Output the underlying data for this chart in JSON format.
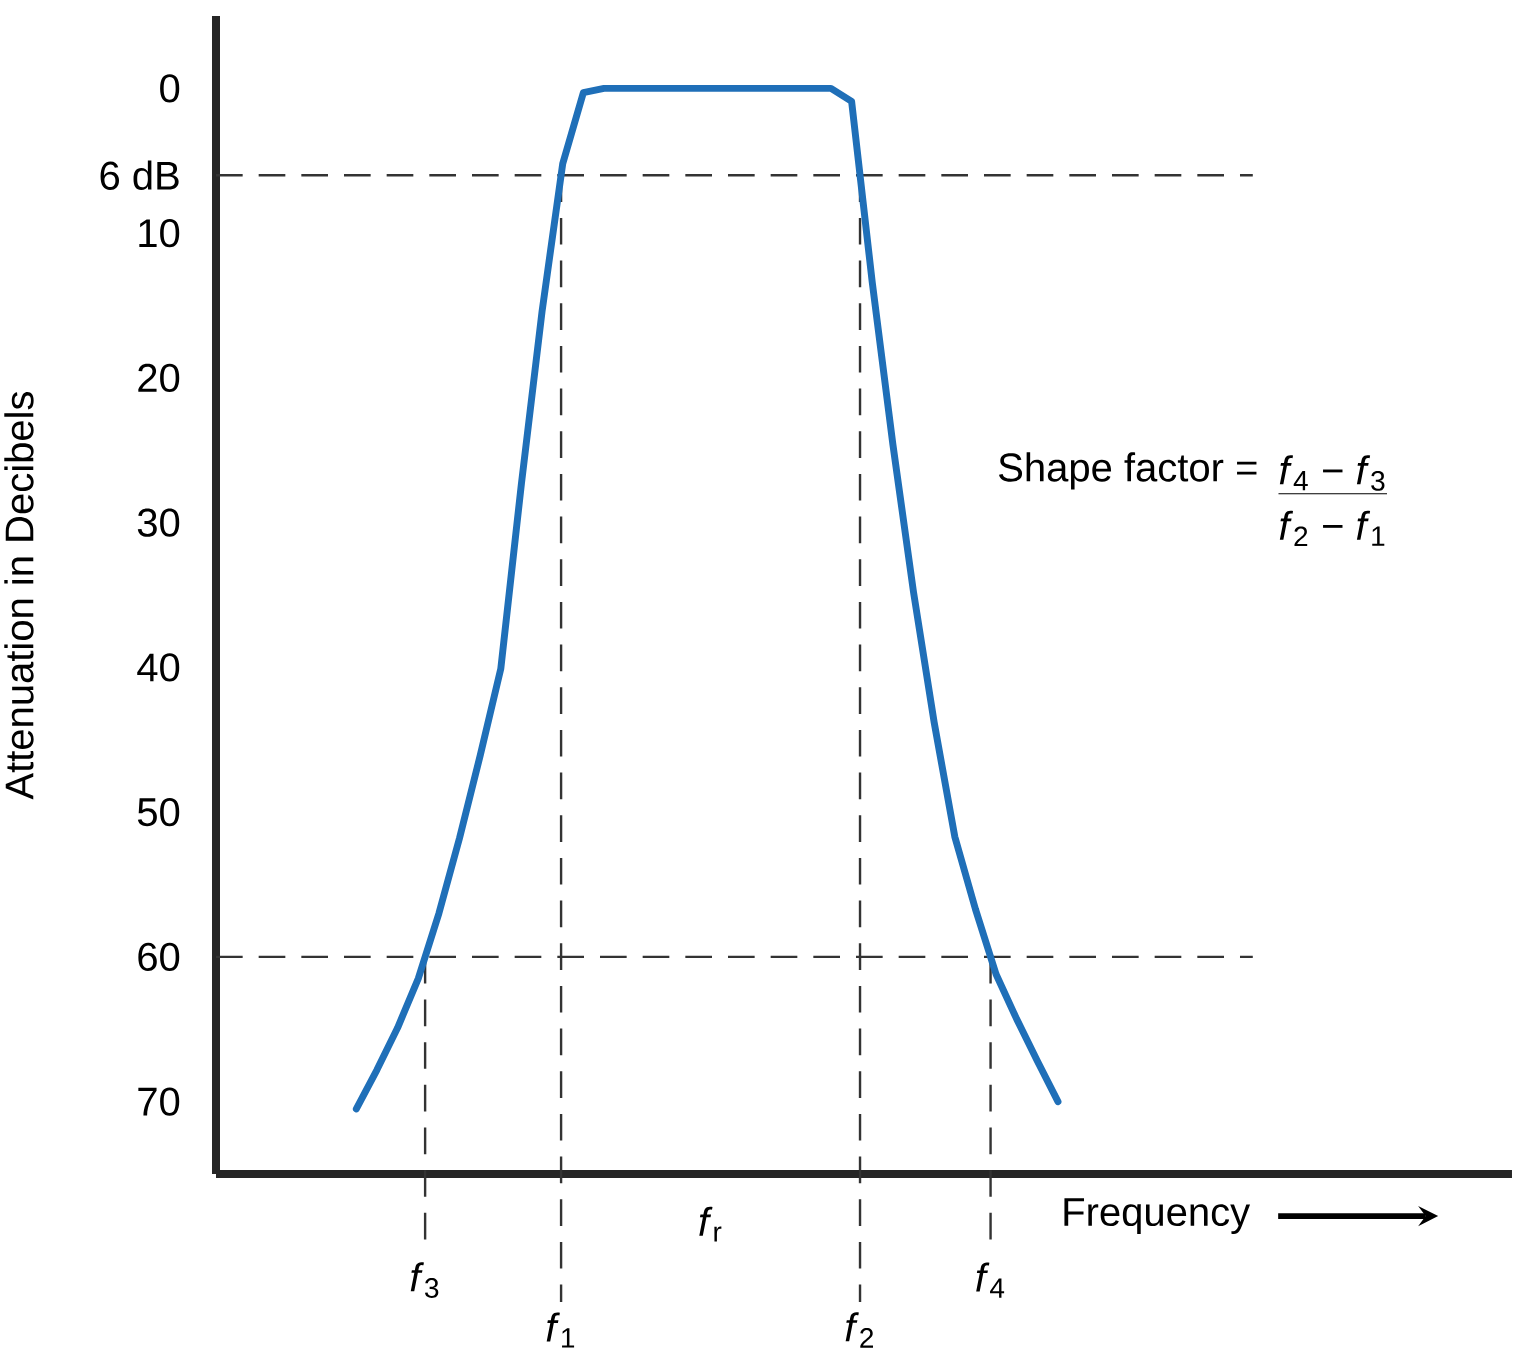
{
  "chart_data": {
    "type": "line",
    "xlabel": "Frequency",
    "ylabel": "Attenuation in Decibels",
    "ylim": [
      75,
      -5
    ],
    "yticks": [
      0,
      {
        "value": 6,
        "label": "6 dB"
      },
      10,
      20,
      30,
      40,
      50,
      60,
      70
    ],
    "categories": [
      null,
      null,
      null,
      null,
      null,
      null,
      null,
      null,
      null,
      null,
      null,
      null,
      null,
      null,
      null,
      null,
      null,
      null,
      null,
      null,
      null,
      null,
      null,
      null,
      null,
      null,
      null,
      null,
      null,
      null,
      null,
      null,
      null,
      null,
      null
    ],
    "series": [
      {
        "color": "#1f6fb8",
        "values": [
          70.5,
          67.8,
          64.9,
          61.5,
          57.0,
          51.8,
          46.1,
          40.1,
          27.3,
          15.4,
          5.2,
          0.3,
          0,
          0,
          0,
          0,
          0,
          0,
          0,
          0,
          0,
          0,
          0,
          0,
          0.9,
          13.4,
          24.6,
          34.8,
          43.8,
          51.7,
          56.7,
          61.2,
          64.3,
          67.2,
          70.0
        ]
      }
    ],
    "ref_lines": [
      {
        "axis": "y",
        "value": 6,
        "color": "#333333",
        "line_style": "dashed"
      },
      {
        "axis": "y",
        "value": 60,
        "color": "#333333",
        "line_style": "dashed"
      }
    ],
    "annotations": [
      "Shape factor =",
      "*f*$_{4}$ − *f*$_{3}$",
      "*f*$_{2}$ − *f*$_{1}$",
      "*f*$_{3}$",
      "*f*$_{1}$",
      "*f*$_{r}$",
      "*f*$_{2}$",
      "*f*$_{4}$"
    ],
    "grid": false,
    "marker": "none",
    "line_style": "solid"
  }
}
